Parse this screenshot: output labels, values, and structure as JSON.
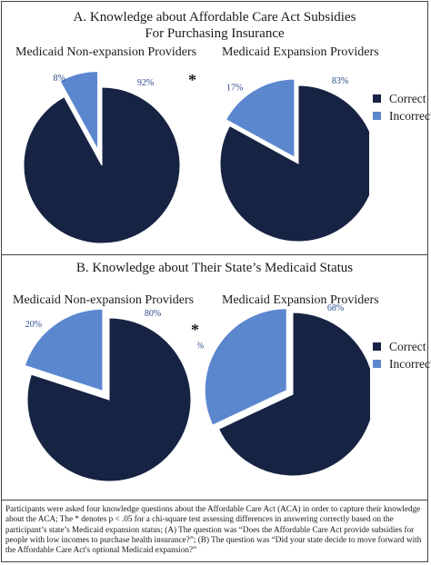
{
  "colors": {
    "correct": "#172343",
    "incorrect": "#5b87cf"
  },
  "legend": {
    "correct": "Correct",
    "incorrect": "Incorrect"
  },
  "significance_marker": "*",
  "caption": "Participants were asked four knowledge questions about the Affordable Care Act (ACA) in order to capture their knowledge about the ACA; The * denotes p < .05 for a chi-square test assessing differences in answering correctly based on the participant’s state’s Medicaid expansion status; (A) The question was “Does the Affordable Care Act provide subsidies for people with low incomes to purchase health insurance?”; (B) The question was “Did your state decide to move forward with the Affordable Care Act's optional Medicaid expansion?”",
  "panels": [
    {
      "title_line1": "A. Knowledge about Affordable Care Act Subsidies",
      "title_line2": "For Purchasing Insurance",
      "left_title": "Medicaid Non-expansion Providers",
      "right_title": "Medicaid Expansion Providers"
    },
    {
      "title_line1": "B. Knowledge about Their State’s Medicaid Status",
      "left_title": "Medicaid Non-expansion Providers",
      "right_title": "Medicaid Expansion Providers"
    }
  ],
  "chart_data": [
    {
      "type": "pie",
      "title": "Medicaid Non-expansion Providers",
      "labels": [
        "Correct",
        "Incorrect"
      ],
      "values": [
        92,
        8
      ],
      "value_labels": [
        "92%",
        "8%"
      ],
      "exploded": "Incorrect"
    },
    {
      "type": "pie",
      "title": "Medicaid Expansion Providers",
      "labels": [
        "Correct",
        "Incorrect"
      ],
      "values": [
        83,
        17
      ],
      "value_labels": [
        "83%",
        "17%"
      ],
      "exploded": "Incorrect"
    },
    {
      "type": "pie",
      "title": "Medicaid Non-expansion Providers",
      "labels": [
        "Correct",
        "Incorrect"
      ],
      "values": [
        80,
        20
      ],
      "value_labels": [
        "80%",
        "20%"
      ],
      "exploded": "Incorrect"
    },
    {
      "type": "pie",
      "title": "Medicaid Expansion Providers",
      "labels": [
        "Correct",
        "Incorrect"
      ],
      "values": [
        68,
        32
      ],
      "value_labels": [
        "68%",
        "32%"
      ],
      "exploded": "Incorrect"
    }
  ]
}
